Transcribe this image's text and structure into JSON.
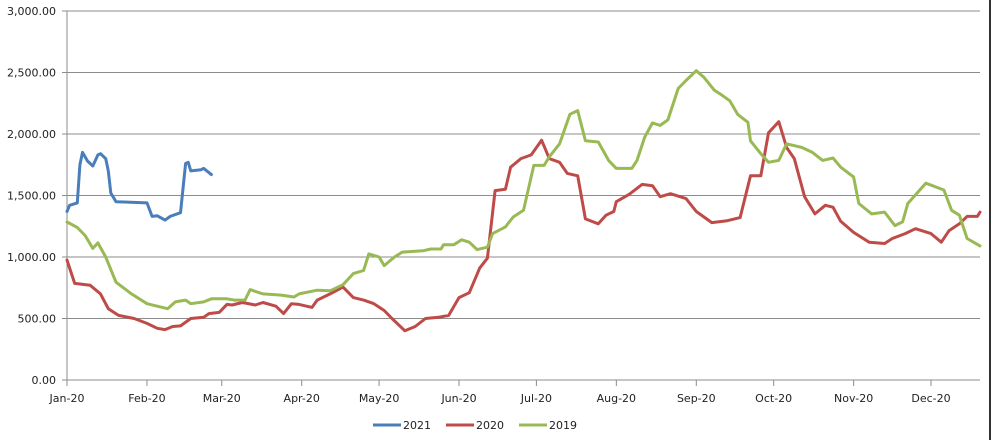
{
  "chart_data": {
    "type": "line",
    "title": "",
    "xlabel": "",
    "ylabel": "",
    "ylim": [
      0,
      3000
    ],
    "yticks": [
      "0.00",
      "500.00",
      "1,000.00",
      "1,500.00",
      "2,000.00",
      "2,500.00",
      "3,000.00"
    ],
    "ytick_values": [
      0,
      500,
      1000,
      1500,
      2000,
      2500,
      3000
    ],
    "xlim": [
      "2020-01-01",
      "2020-12-20"
    ],
    "xticks": [
      {
        "date": "2020-01-01",
        "label": "Jan-20"
      },
      {
        "date": "2020-02-01",
        "label": "Feb-20"
      },
      {
        "date": "2020-03-01",
        "label": "Mar-20"
      },
      {
        "date": "2020-04-01",
        "label": "Apr-20"
      },
      {
        "date": "2020-05-01",
        "label": "May-20"
      },
      {
        "date": "2020-06-01",
        "label": "Jun-20"
      },
      {
        "date": "2020-07-01",
        "label": "Jul-20"
      },
      {
        "date": "2020-08-01",
        "label": "Aug-20"
      },
      {
        "date": "2020-09-01",
        "label": "Sep-20"
      },
      {
        "date": "2020-10-01",
        "label": "Oct-20"
      },
      {
        "date": "2020-11-01",
        "label": "Nov-20"
      },
      {
        "date": "2020-12-01",
        "label": "Dec-20"
      }
    ],
    "grid": "horizontal",
    "legend_position": "bottom",
    "series": [
      {
        "name": "2021",
        "color": "#4a7ebb",
        "points": [
          [
            "2020-01-01",
            1370
          ],
          [
            "2020-01-02",
            1420
          ],
          [
            "2020-01-05",
            1440
          ],
          [
            "2020-01-06",
            1750
          ],
          [
            "2020-01-07",
            1850
          ],
          [
            "2020-01-09",
            1780
          ],
          [
            "2020-01-11",
            1740
          ],
          [
            "2020-01-13",
            1830
          ],
          [
            "2020-01-14",
            1840
          ],
          [
            "2020-01-16",
            1800
          ],
          [
            "2020-01-17",
            1700
          ],
          [
            "2020-01-18",
            1520
          ],
          [
            "2020-01-20",
            1450
          ],
          [
            "2020-02-01",
            1440
          ],
          [
            "2020-02-03",
            1330
          ],
          [
            "2020-02-05",
            1335
          ],
          [
            "2020-02-08",
            1300
          ],
          [
            "2020-02-10",
            1330
          ],
          [
            "2020-02-14",
            1360
          ],
          [
            "2020-02-16",
            1760
          ],
          [
            "2020-02-17",
            1770
          ],
          [
            "2020-02-18",
            1700
          ],
          [
            "2020-02-22",
            1710
          ],
          [
            "2020-02-23",
            1720
          ],
          [
            "2020-02-26",
            1670
          ]
        ]
      },
      {
        "name": "2020",
        "color": "#be4b48",
        "points": [
          [
            "2020-01-01",
            975
          ],
          [
            "2020-01-04",
            785
          ],
          [
            "2020-01-10",
            770
          ],
          [
            "2020-01-14",
            700
          ],
          [
            "2020-01-17",
            580
          ],
          [
            "2020-01-21",
            525
          ],
          [
            "2020-01-27",
            500
          ],
          [
            "2020-02-01",
            460
          ],
          [
            "2020-02-05",
            420
          ],
          [
            "2020-02-08",
            410
          ],
          [
            "2020-02-11",
            435
          ],
          [
            "2020-02-14",
            440
          ],
          [
            "2020-02-18",
            500
          ],
          [
            "2020-02-23",
            510
          ],
          [
            "2020-02-25",
            540
          ],
          [
            "2020-02-29",
            550
          ],
          [
            "2020-03-03",
            615
          ],
          [
            "2020-03-05",
            610
          ],
          [
            "2020-03-09",
            630
          ],
          [
            "2020-03-14",
            610
          ],
          [
            "2020-03-17",
            630
          ],
          [
            "2020-03-22",
            600
          ],
          [
            "2020-03-25",
            540
          ],
          [
            "2020-03-28",
            620
          ],
          [
            "2020-03-31",
            615
          ],
          [
            "2020-04-05",
            590
          ],
          [
            "2020-04-07",
            650
          ],
          [
            "2020-04-12",
            700
          ],
          [
            "2020-04-17",
            755
          ],
          [
            "2020-04-21",
            670
          ],
          [
            "2020-04-25",
            650
          ],
          [
            "2020-04-29",
            620
          ],
          [
            "2020-05-03",
            565
          ],
          [
            "2020-05-06",
            500
          ],
          [
            "2020-05-11",
            400
          ],
          [
            "2020-05-15",
            435
          ],
          [
            "2020-05-19",
            500
          ],
          [
            "2020-05-24",
            510
          ],
          [
            "2020-05-28",
            525
          ],
          [
            "2020-06-01",
            670
          ],
          [
            "2020-06-05",
            710
          ],
          [
            "2020-06-09",
            910
          ],
          [
            "2020-06-12",
            990
          ],
          [
            "2020-06-15",
            1540
          ],
          [
            "2020-06-19",
            1550
          ],
          [
            "2020-06-21",
            1730
          ],
          [
            "2020-06-25",
            1800
          ],
          [
            "2020-06-29",
            1830
          ],
          [
            "2020-07-03",
            1950
          ],
          [
            "2020-07-06",
            1800
          ],
          [
            "2020-07-10",
            1770
          ],
          [
            "2020-07-13",
            1680
          ],
          [
            "2020-07-17",
            1660
          ],
          [
            "2020-07-20",
            1310
          ],
          [
            "2020-07-25",
            1270
          ],
          [
            "2020-07-28",
            1340
          ],
          [
            "2020-07-31",
            1370
          ],
          [
            "2020-08-01",
            1450
          ],
          [
            "2020-08-06",
            1510
          ],
          [
            "2020-08-11",
            1590
          ],
          [
            "2020-08-15",
            1580
          ],
          [
            "2020-08-18",
            1490
          ],
          [
            "2020-08-22",
            1515
          ],
          [
            "2020-08-28",
            1475
          ],
          [
            "2020-09-01",
            1370
          ],
          [
            "2020-09-07",
            1280
          ],
          [
            "2020-09-13",
            1295
          ],
          [
            "2020-09-18",
            1320
          ],
          [
            "2020-09-22",
            1660
          ],
          [
            "2020-09-26",
            1660
          ],
          [
            "2020-09-29",
            2010
          ],
          [
            "2020-10-03",
            2100
          ],
          [
            "2020-10-06",
            1890
          ],
          [
            "2020-10-09",
            1800
          ],
          [
            "2020-10-13",
            1490
          ],
          [
            "2020-10-17",
            1350
          ],
          [
            "2020-10-21",
            1420
          ],
          [
            "2020-10-24",
            1405
          ],
          [
            "2020-10-27",
            1290
          ],
          [
            "2020-11-01",
            1200
          ],
          [
            "2020-11-07",
            1120
          ],
          [
            "2020-11-13",
            1110
          ],
          [
            "2020-11-16",
            1150
          ],
          [
            "2020-11-21",
            1190
          ],
          [
            "2020-11-25",
            1230
          ],
          [
            "2020-12-01",
            1190
          ],
          [
            "2020-12-05",
            1120
          ],
          [
            "2020-12-08",
            1215
          ],
          [
            "2020-12-12",
            1270
          ],
          [
            "2020-12-15",
            1330
          ],
          [
            "2020-12-19",
            1330
          ],
          [
            "2020-12-20",
            1365
          ]
        ]
      },
      {
        "name": "2019",
        "color": "#98b954",
        "points": [
          [
            "2020-01-01",
            1285
          ],
          [
            "2020-01-05",
            1240
          ],
          [
            "2020-01-08",
            1175
          ],
          [
            "2020-01-11",
            1070
          ],
          [
            "2020-01-13",
            1115
          ],
          [
            "2020-01-16",
            1000
          ],
          [
            "2020-01-20",
            795
          ],
          [
            "2020-01-26",
            700
          ],
          [
            "2020-02-01",
            620
          ],
          [
            "2020-02-06",
            595
          ],
          [
            "2020-02-09",
            580
          ],
          [
            "2020-02-12",
            635
          ],
          [
            "2020-02-16",
            650
          ],
          [
            "2020-02-18",
            620
          ],
          [
            "2020-02-23",
            635
          ],
          [
            "2020-02-26",
            660
          ],
          [
            "2020-03-03",
            660
          ],
          [
            "2020-03-06",
            650
          ],
          [
            "2020-03-10",
            650
          ],
          [
            "2020-03-12",
            735
          ],
          [
            "2020-03-17",
            700
          ],
          [
            "2020-03-24",
            690
          ],
          [
            "2020-03-29",
            675
          ],
          [
            "2020-03-31",
            700
          ],
          [
            "2020-04-07",
            730
          ],
          [
            "2020-04-12",
            725
          ],
          [
            "2020-04-17",
            775
          ],
          [
            "2020-04-21",
            865
          ],
          [
            "2020-04-25",
            890
          ],
          [
            "2020-04-27",
            1025
          ],
          [
            "2020-05-01",
            1000
          ],
          [
            "2020-05-03",
            930
          ],
          [
            "2020-05-07",
            1000
          ],
          [
            "2020-05-10",
            1040
          ],
          [
            "2020-05-18",
            1050
          ],
          [
            "2020-05-21",
            1065
          ],
          [
            "2020-05-25",
            1065
          ],
          [
            "2020-05-26",
            1100
          ],
          [
            "2020-05-30",
            1100
          ],
          [
            "2020-06-02",
            1140
          ],
          [
            "2020-06-05",
            1120
          ],
          [
            "2020-06-08",
            1060
          ],
          [
            "2020-06-12",
            1080
          ],
          [
            "2020-06-14",
            1190
          ],
          [
            "2020-06-19",
            1245
          ],
          [
            "2020-06-22",
            1325
          ],
          [
            "2020-06-26",
            1380
          ],
          [
            "2020-06-30",
            1745
          ],
          [
            "2020-07-04",
            1745
          ],
          [
            "2020-07-06",
            1815
          ],
          [
            "2020-07-10",
            1920
          ],
          [
            "2020-07-14",
            2160
          ],
          [
            "2020-07-17",
            2190
          ],
          [
            "2020-07-20",
            1945
          ],
          [
            "2020-07-25",
            1935
          ],
          [
            "2020-07-29",
            1785
          ],
          [
            "2020-08-01",
            1720
          ],
          [
            "2020-08-04",
            1720
          ],
          [
            "2020-08-07",
            1720
          ],
          [
            "2020-08-09",
            1785
          ],
          [
            "2020-08-12",
            1975
          ],
          [
            "2020-08-15",
            2090
          ],
          [
            "2020-08-18",
            2070
          ],
          [
            "2020-08-21",
            2115
          ],
          [
            "2020-08-25",
            2370
          ],
          [
            "2020-08-28",
            2435
          ],
          [
            "2020-09-01",
            2515
          ],
          [
            "2020-09-04",
            2460
          ],
          [
            "2020-09-08",
            2355
          ],
          [
            "2020-09-11",
            2315
          ],
          [
            "2020-09-14",
            2270
          ],
          [
            "2020-09-17",
            2160
          ],
          [
            "2020-09-21",
            2095
          ],
          [
            "2020-09-22",
            1945
          ],
          [
            "2020-09-26",
            1840
          ],
          [
            "2020-09-29",
            1770
          ],
          [
            "2020-10-03",
            1785
          ],
          [
            "2020-10-06",
            1920
          ],
          [
            "2020-10-12",
            1890
          ],
          [
            "2020-10-16",
            1850
          ],
          [
            "2020-10-20",
            1785
          ],
          [
            "2020-10-24",
            1805
          ],
          [
            "2020-10-27",
            1730
          ],
          [
            "2020-11-01",
            1650
          ],
          [
            "2020-11-03",
            1435
          ],
          [
            "2020-11-08",
            1350
          ],
          [
            "2020-11-13",
            1365
          ],
          [
            "2020-11-17",
            1255
          ],
          [
            "2020-11-20",
            1285
          ],
          [
            "2020-11-22",
            1435
          ],
          [
            "2020-11-29",
            1600
          ],
          [
            "2020-12-06",
            1545
          ],
          [
            "2020-12-09",
            1380
          ],
          [
            "2020-12-12",
            1340
          ],
          [
            "2020-12-15",
            1150
          ],
          [
            "2020-12-20",
            1090
          ]
        ]
      }
    ]
  }
}
